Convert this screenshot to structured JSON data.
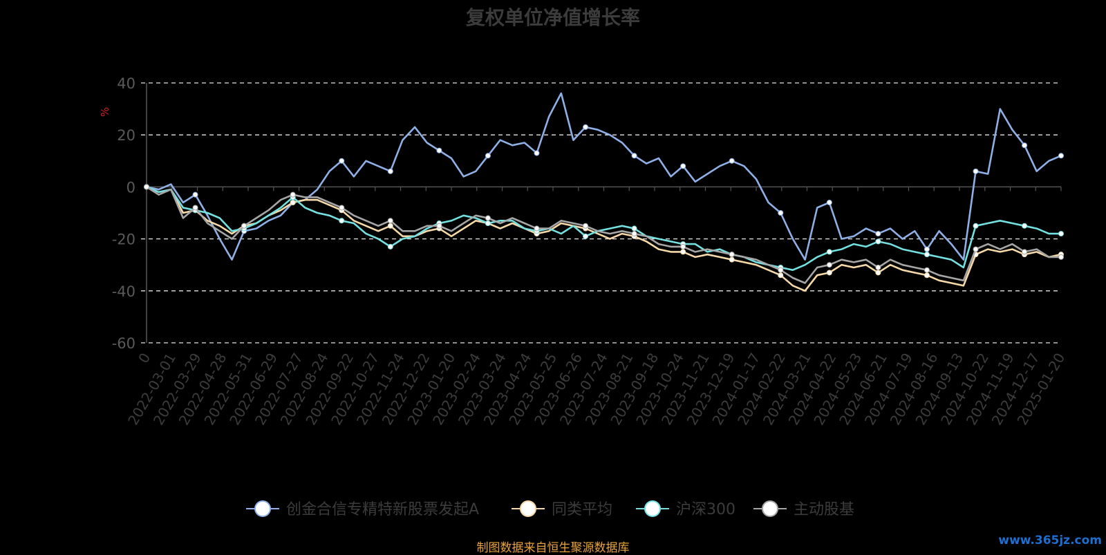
{
  "chart_data": {
    "type": "line",
    "title": "复权单位净值增长率",
    "ylabel": "%",
    "ylim": [
      -60,
      40
    ],
    "yticks": [
      40,
      20,
      0,
      -20,
      -40,
      -60
    ],
    "grid": true,
    "legend_position": "bottom-center",
    "x_tick_labels": [
      "0",
      "2022-03-01",
      "2022-03-29",
      "2022-04-28",
      "2022-05-31",
      "2022-06-29",
      "2022-07-27",
      "2022-08-24",
      "2022-09-22",
      "2022-10-27",
      "2022-11-24",
      "2022-12-22",
      "2023-01-20",
      "2023-02-24",
      "2023-03-24",
      "2023-04-24",
      "2023-05-25",
      "2023-06-26",
      "2023-07-24",
      "2023-08-21",
      "2023-09-18",
      "2023-10-24",
      "2023-11-21",
      "2023-12-19",
      "2024-01-17",
      "2024-02-22",
      "2024-03-21",
      "2024-04-22",
      "2024-05-23",
      "2024-06-21",
      "2024-07-19",
      "2024-08-16",
      "2024-09-13",
      "2024-10-22",
      "2024-11-19",
      "2024-12-17",
      "2025-01-20"
    ],
    "series": [
      {
        "name": "创金合信专精特新股票发起A",
        "color": "#8fb0e6",
        "values": [
          0,
          -1,
          1,
          -6,
          -3,
          -11,
          -20,
          -28,
          -17,
          -16,
          -13,
          -11,
          -6,
          -5,
          -1,
          6,
          10,
          4,
          10,
          8,
          6,
          18,
          23,
          17,
          14,
          11,
          4,
          6,
          12,
          18,
          16,
          17,
          13,
          27,
          36,
          18,
          23,
          22,
          20,
          17,
          12,
          9,
          11,
          4,
          8,
          2,
          5,
          8,
          10,
          8,
          3,
          -6,
          -10,
          -20,
          -28,
          -8,
          -6,
          -20,
          -19,
          -16,
          -18,
          -16,
          -20,
          -17,
          -24,
          -17,
          -22,
          -28,
          6,
          5,
          30,
          22,
          16,
          6,
          10,
          12
        ]
      },
      {
        "name": "同类平均",
        "color": "#f5d9a8",
        "values": [
          0,
          -2,
          -1,
          -10,
          -9,
          -13,
          -15,
          -18,
          -15,
          -14,
          -11,
          -9,
          -6,
          -5,
          -5,
          -7,
          -9,
          -13,
          -15,
          -17,
          -15,
          -19,
          -19,
          -17,
          -16,
          -19,
          -16,
          -13,
          -14,
          -16,
          -14,
          -16,
          -18,
          -17,
          -14,
          -15,
          -16,
          -18,
          -20,
          -18,
          -19,
          -21,
          -24,
          -25,
          -25,
          -27,
          -26,
          -27,
          -28,
          -29,
          -30,
          -32,
          -34,
          -38,
          -40,
          -34,
          -33,
          -30,
          -31,
          -30,
          -33,
          -30,
          -32,
          -33,
          -34,
          -36,
          -37,
          -38,
          -26,
          -24,
          -25,
          -24,
          -26,
          -25,
          -27,
          -26
        ]
      },
      {
        "name": "沪深300",
        "color": "#74e0e0",
        "values": [
          0,
          -2,
          -1,
          -8,
          -9,
          -10,
          -12,
          -17,
          -16,
          -14,
          -11,
          -8,
          -4,
          -8,
          -10,
          -11,
          -13,
          -14,
          -18,
          -20,
          -23,
          -20,
          -19,
          -16,
          -14,
          -13,
          -11,
          -12,
          -14,
          -13,
          -13,
          -16,
          -17,
          -16,
          -18,
          -15,
          -19,
          -17,
          -16,
          -15,
          -16,
          -19,
          -20,
          -21,
          -22,
          -22,
          -25,
          -24,
          -26,
          -27,
          -29,
          -30,
          -31,
          -32,
          -30,
          -27,
          -25,
          -24,
          -22,
          -23,
          -21,
          -22,
          -24,
          -25,
          -26,
          -27,
          -28,
          -31,
          -15,
          -14,
          -13,
          -14,
          -15,
          -16,
          -18,
          -18
        ]
      },
      {
        "name": "主动股基",
        "color": "#a6a6a6",
        "values": [
          0,
          -3,
          -1,
          -12,
          -8,
          -14,
          -17,
          -20,
          -15,
          -12,
          -9,
          -5,
          -3,
          -4,
          -4,
          -6,
          -8,
          -11,
          -13,
          -15,
          -13,
          -17,
          -17,
          -15,
          -15,
          -17,
          -14,
          -11,
          -12,
          -14,
          -12,
          -14,
          -16,
          -16,
          -13,
          -14,
          -15,
          -17,
          -18,
          -17,
          -18,
          -19,
          -22,
          -23,
          -23,
          -25,
          -24,
          -25,
          -26,
          -27,
          -28,
          -30,
          -32,
          -35,
          -37,
          -31,
          -30,
          -28,
          -29,
          -28,
          -31,
          -28,
          -30,
          -31,
          -32,
          -34,
          -35,
          -36,
          -24,
          -22,
          -24,
          -22,
          -25,
          -24,
          -27,
          -27
        ]
      }
    ]
  },
  "source_note": "制图数据来自恒生聚源数据库",
  "watermark": "www.365jz.com"
}
